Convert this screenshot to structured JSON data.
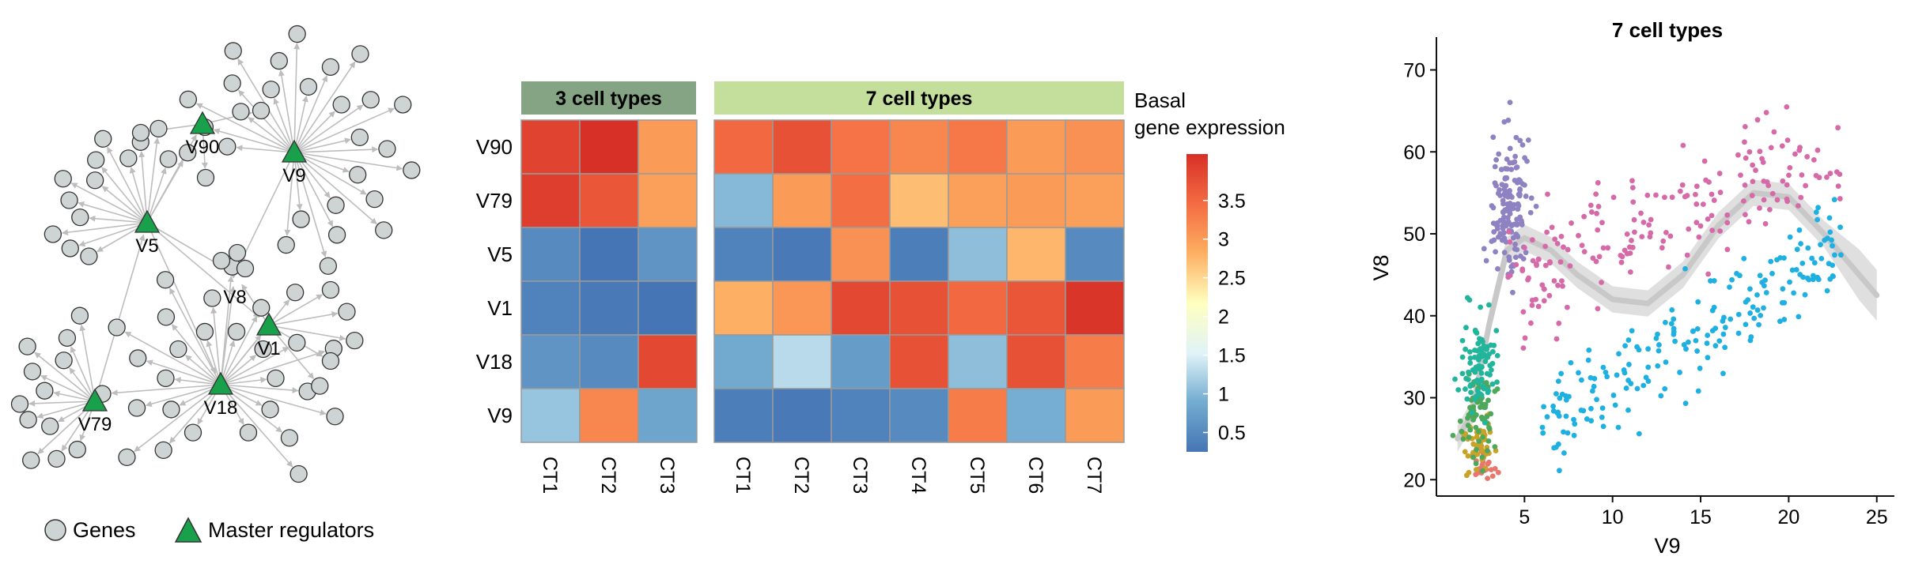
{
  "network": {
    "legend": {
      "genes_label": "Genes",
      "regulators_label": "Master regulators"
    },
    "colors": {
      "gene_fill": "#cdd4d3",
      "gene_stroke": "#333333",
      "regulator_fill": "#19a04a",
      "edge": "#bdbdbd"
    },
    "regulators": [
      "V90",
      "V9",
      "V5",
      "V8",
      "V1",
      "V79",
      "V18"
    ]
  },
  "heatmap": {
    "group1_title": "3 cell types",
    "group2_title": "7 cell types",
    "group1_color": "#85a484",
    "group2_color": "#c4df9c",
    "rows": [
      "V90",
      "V79",
      "V5",
      "V1",
      "V18",
      "V9"
    ],
    "group1_cols": [
      "CT1",
      "CT2",
      "CT3"
    ],
    "group2_cols": [
      "CT1",
      "CT2",
      "CT3",
      "CT4",
      "CT5",
      "CT6",
      "CT7"
    ],
    "group1_values": [
      [
        3.9,
        4.1,
        3.0
      ],
      [
        3.95,
        3.7,
        2.95
      ],
      [
        0.5,
        0.25,
        0.6
      ],
      [
        0.4,
        0.3,
        0.25
      ],
      [
        0.6,
        0.5,
        3.85
      ],
      [
        1.1,
        3.2,
        0.8
      ]
    ],
    "group2_values": [
      [
        3.5,
        3.75,
        3.4,
        3.2,
        3.35,
        3.0,
        3.1
      ],
      [
        1.0,
        3.0,
        3.45,
        2.7,
        2.95,
        3.0,
        2.95
      ],
      [
        0.4,
        0.3,
        3.1,
        0.35,
        1.05,
        2.75,
        0.5
      ],
      [
        2.8,
        3.05,
        3.85,
        3.75,
        3.5,
        3.7,
        4.05
      ],
      [
        0.85,
        1.3,
        0.7,
        3.75,
        1.05,
        3.75,
        3.3
      ],
      [
        0.35,
        0.3,
        0.4,
        0.5,
        3.3,
        0.9,
        3.0
      ]
    ]
  },
  "colorbar": {
    "title_line1": "Basal",
    "title_line2": "gene expression",
    "ticks": [
      "3.5",
      "3",
      "2.5",
      "2",
      "1.5",
      "1",
      "0.5"
    ],
    "tick_values": [
      3.5,
      3,
      2.5,
      2,
      1.5,
      1,
      0.5
    ],
    "range": [
      0.25,
      4.1
    ]
  },
  "chart_data": {
    "type": "scatter",
    "title": "7 cell types",
    "xlabel": "V9",
    "ylabel": "V8",
    "xlim": [
      0,
      26
    ],
    "ylim": [
      18,
      74
    ],
    "x_ticks": [
      "5",
      "10",
      "15",
      "20",
      "25"
    ],
    "x_tick_values": [
      5,
      10,
      15,
      20,
      25
    ],
    "y_ticks": [
      "20",
      "30",
      "40",
      "50",
      "60",
      "70"
    ],
    "y_tick_values": [
      20,
      30,
      40,
      50,
      60,
      70
    ],
    "grid": false,
    "series": [
      {
        "color": "#e8766e",
        "cx": 2.6,
        "cy": 21.5,
        "sx": 0.4,
        "sy": 1.0,
        "n": 25
      },
      {
        "color": "#c9a227",
        "cx": 2.4,
        "cy": 24.0,
        "sx": 0.45,
        "sy": 2.0,
        "n": 45
      },
      {
        "color": "#4ea85b",
        "cx": 2.3,
        "cy": 28.0,
        "sx": 0.45,
        "sy": 2.5,
        "n": 70
      },
      {
        "color": "#22b59c",
        "cx": 2.5,
        "cy": 34.0,
        "sx": 0.5,
        "sy": 3.0,
        "n": 90
      },
      {
        "color": "#8e82c2",
        "cx": 4.2,
        "cy": 53.0,
        "sx": 0.6,
        "sy": 4.5,
        "n": 150
      },
      {
        "color": "#d66aa8",
        "cx": 16.5,
        "cy": 57.0,
        "sx": 3.5,
        "sy": 6.0,
        "n": 190
      },
      {
        "color": "#1fb0e2",
        "cx": 15.0,
        "cy": 38.0,
        "sx": 4.5,
        "sy": 7.0,
        "n": 200
      }
    ],
    "trend": {
      "color": "#c8c8c8",
      "x": [
        1.2,
        2.0,
        3.0,
        4.0,
        5.0,
        6.5,
        8.0,
        10.0,
        12.0,
        14.0,
        16.0,
        18.0,
        20.0,
        22.0,
        24.0,
        25.0
      ],
      "y": [
        25.0,
        28.0,
        39.0,
        48.0,
        49.5,
        48.0,
        45.0,
        42.0,
        41.5,
        45.0,
        51.0,
        55.0,
        54.5,
        50.0,
        45.0,
        42.5
      ]
    }
  }
}
